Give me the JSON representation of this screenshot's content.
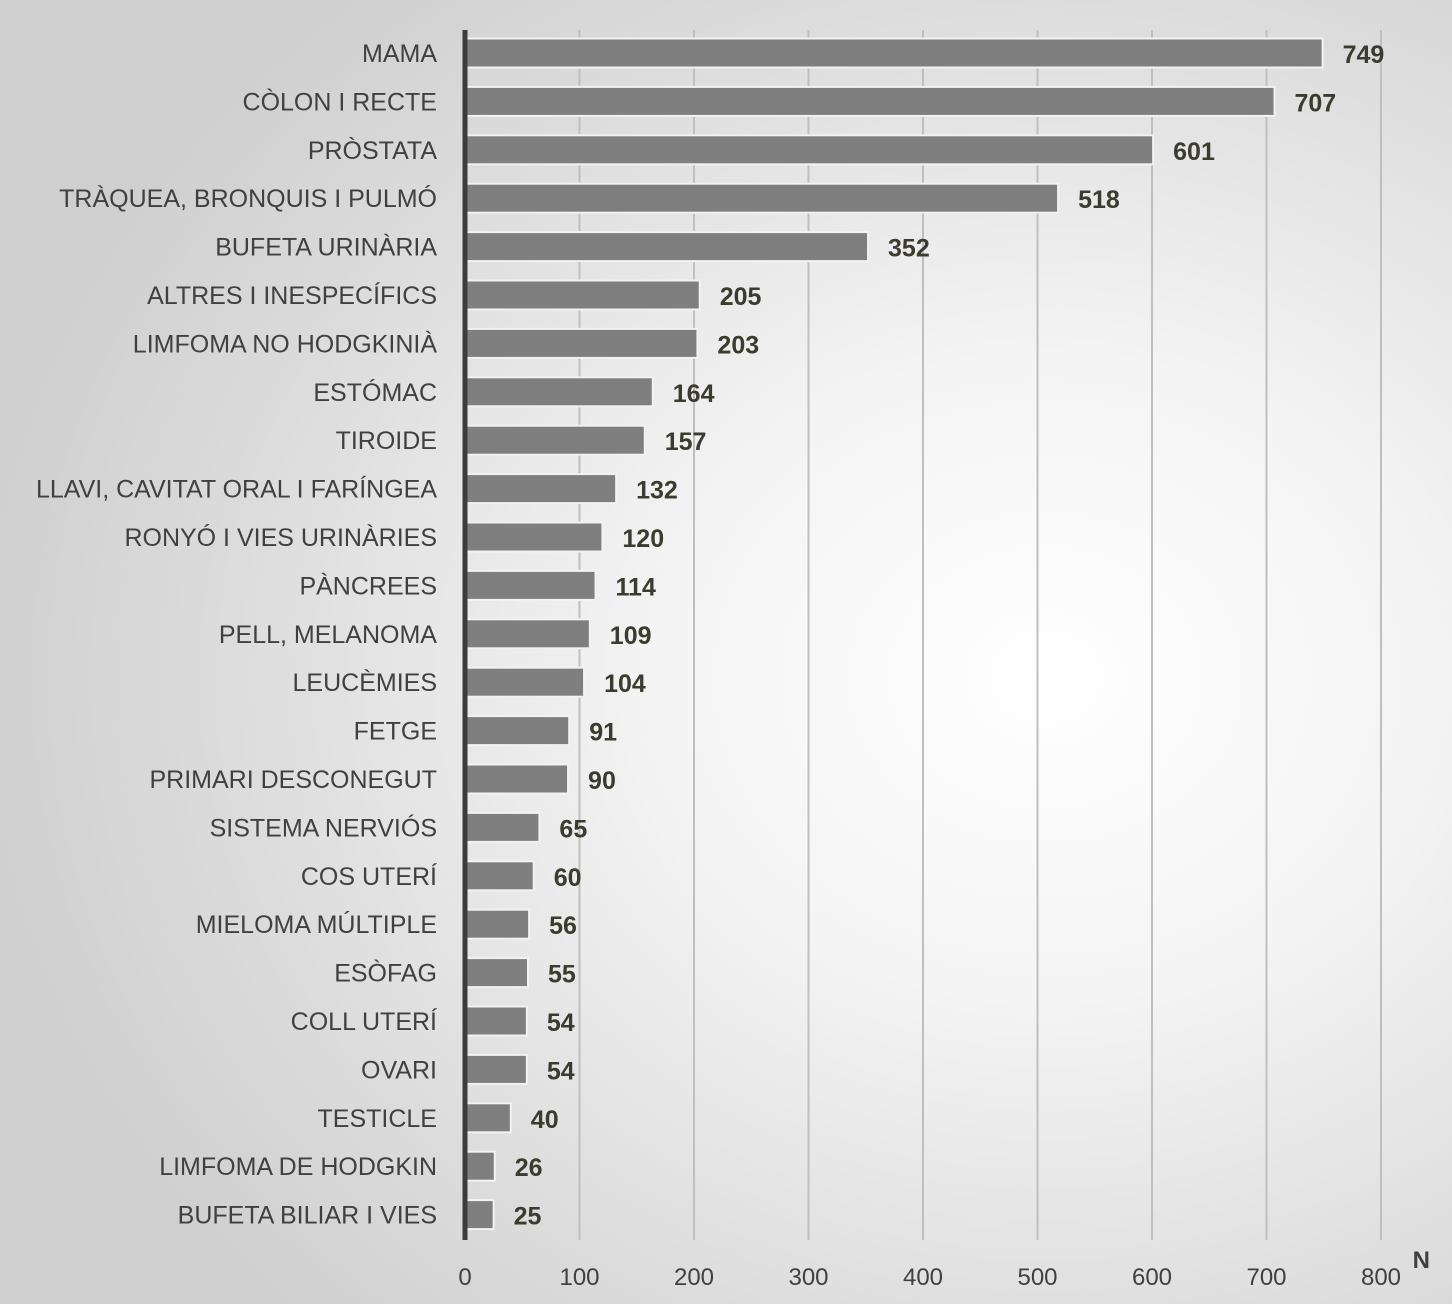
{
  "chart_data": {
    "type": "bar",
    "orientation": "horizontal",
    "categories": [
      "MAMA",
      "CÒLON I RECTE",
      "PRÒSTATA",
      "TRÀQUEA, BRONQUIS I PULMÓ",
      "BUFETA URINÀRIA",
      "ALTRES I INESPECÍFICS",
      "LIMFOMA NO HODGKINIÀ",
      "ESTÓMAC",
      "TIROIDE",
      "LLAVI, CAVITAT ORAL I FARÍNGEA",
      "RONYÓ I VIES URINÀRIES",
      "PÀNCREES",
      "PELL, MELANOMA",
      "LEUCÈMIES",
      "FETGE",
      "PRIMARI DESCONEGUT",
      "SISTEMA NERVIÓS",
      "COS UTERÍ",
      "MIELOMA MÚLTIPLE",
      "ESÒFAG",
      "COLL UTERÍ",
      "OVARI",
      "TESTICLE",
      "LIMFOMA DE HODGKIN",
      "BUFETA BILIAR I VIES"
    ],
    "values": [
      749,
      707,
      601,
      518,
      352,
      205,
      203,
      164,
      157,
      132,
      120,
      114,
      109,
      104,
      91,
      90,
      65,
      60,
      56,
      55,
      54,
      54,
      40,
      26,
      25
    ],
    "value_labels": [
      "749",
      "707",
      "601",
      "518",
      "352",
      "205",
      "203",
      "164",
      "157",
      "132",
      "120",
      "114",
      "109",
      "104",
      "91",
      "90",
      "65",
      "60",
      "56",
      "55",
      "54",
      "54",
      "40",
      "26",
      "25"
    ],
    "xlabel": "N",
    "xlim": [
      0,
      800
    ],
    "xticks": [
      0,
      100,
      200,
      300,
      400,
      500,
      600,
      700,
      800
    ],
    "xtick_labels": [
      "0",
      "100",
      "200",
      "300",
      "400",
      "500",
      "600",
      "700",
      "800"
    ],
    "grid": "vertical",
    "legend": "none",
    "colors": {
      "bar_fill": "#7f7f7f",
      "bar_border": "#f2f2f2",
      "axis": "#3c3c3c",
      "grid": "#bfbfbf",
      "value_text": "#3b3b2e",
      "category_text": "#404040"
    }
  }
}
